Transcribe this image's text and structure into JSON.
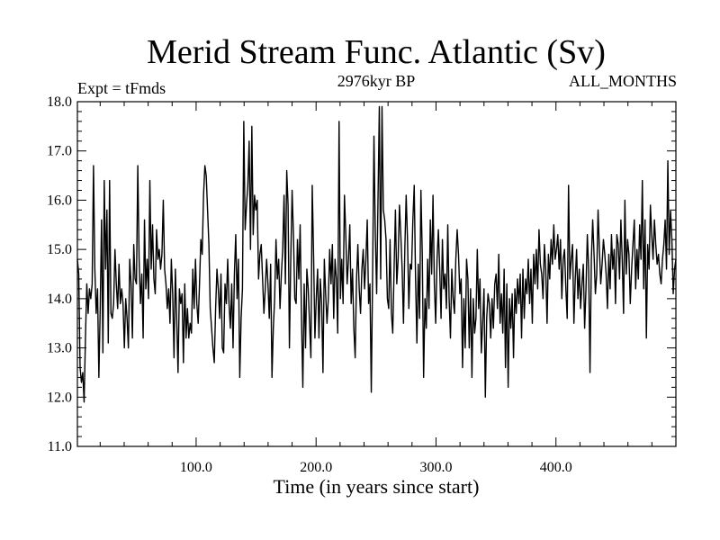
{
  "chart_data": {
    "type": "line",
    "title": "Merid Stream Func. Atlantic (Sv)",
    "subtitle": "2976kyr BP",
    "expt_label": "Expt = tFmds",
    "months_label": "ALL_MONTHS",
    "xlabel": "Time (in years since start)",
    "ylabel": "",
    "xlim": [
      1,
      500
    ],
    "ylim": [
      11.0,
      18.0
    ],
    "x_ticks": [
      "100.0",
      "200.0",
      "300.0",
      "400.0"
    ],
    "y_ticks": [
      "11.0",
      "12.0",
      "13.0",
      "14.0",
      "15.0",
      "16.0",
      "17.0",
      "18.0"
    ],
    "grid": false,
    "series": [
      {
        "values": [
          14.8,
          14.5,
          12.6,
          12.3,
          12.5,
          11.9,
          13.2,
          14.3,
          13.7,
          14.2,
          14.0,
          14.3,
          16.7,
          14.6,
          13.7,
          14.2,
          12.4,
          13.8,
          15.6,
          12.9,
          16.4,
          14.6,
          15.8,
          13.1,
          16.4,
          13.7,
          13.6,
          13.9,
          15.0,
          14.3,
          13.8,
          14.7,
          13.9,
          14.2,
          13.9,
          13.0,
          14.0,
          13.6,
          13.0,
          14.8,
          14.3,
          13.2,
          15.1,
          14.4,
          14.3,
          16.7,
          14.8,
          13.9,
          14.5,
          13.2,
          15.6,
          14.2,
          14.8,
          14.0,
          16.4,
          14.6,
          15.5,
          14.4,
          14.1,
          15.4,
          14.8,
          15.0,
          14.6,
          14.9,
          16.0,
          14.6,
          14.3,
          13.8,
          14.2,
          13.5,
          14.8,
          14.1,
          12.8,
          14.6,
          13.6,
          12.5,
          14.2,
          13.9,
          14.1,
          12.7,
          14.3,
          13.2,
          13.8,
          13.2,
          13.5,
          13.3,
          14.6,
          13.8,
          14.8,
          13.9,
          13.5,
          14.3,
          15.2,
          14.9,
          16.1,
          16.7,
          16.5,
          15.8,
          15.1,
          13.8,
          13.4,
          13.0,
          12.7,
          13.8,
          14.6,
          14.2,
          13.6,
          14.5,
          13.0,
          12.9,
          14.3,
          13.9,
          14.8,
          13.9,
          13.4,
          14.3,
          13.0,
          14.5,
          15.3,
          14.0,
          14.8,
          12.4,
          13.6,
          14.2,
          17.6,
          15.4,
          15.9,
          16.3,
          17.2,
          15.0,
          17.5,
          15.3,
          16.1,
          15.8,
          16.0,
          14.4,
          14.9,
          15.1,
          14.4,
          13.7,
          14.2,
          14.8,
          14.3,
          13.6,
          14.7,
          12.4,
          13.4,
          14.0,
          15.2,
          14.4,
          14.8,
          13.8,
          14.5,
          15.0,
          16.1,
          14.3,
          16.6,
          15.9,
          13.0,
          14.8,
          16.2,
          15.3,
          14.0,
          13.9,
          15.2,
          14.4,
          15.5,
          13.6,
          12.2,
          14.3,
          13.0,
          14.6,
          14.2,
          13.5,
          12.8,
          16.3,
          14.9,
          13.2,
          14.0,
          14.6,
          13.2,
          14.4,
          13.9,
          12.5,
          14.8,
          14.1,
          13.5,
          14.0,
          15.0,
          14.3,
          15.1,
          13.6,
          14.8,
          14.4,
          13.3,
          17.6,
          14.0,
          14.8,
          13.9,
          16.1,
          15.3,
          14.3,
          14.8,
          15.5,
          13.9,
          14.6,
          13.4,
          12.8,
          14.4,
          15.1,
          14.2,
          13.7,
          14.6,
          15.0,
          14.2,
          14.8,
          15.6,
          13.9,
          14.3,
          12.1,
          14.5,
          17.3,
          15.3,
          14.1,
          16.0,
          17.9,
          14.4,
          17.9,
          15.8,
          15.6,
          15.2,
          14.0,
          13.8,
          15.2,
          13.7,
          13.3,
          14.6,
          15.8,
          14.3,
          14.8,
          15.9,
          15.3,
          14.6,
          13.5,
          15.0,
          16.1,
          15.2,
          13.8,
          14.7,
          14.6,
          15.6,
          16.3,
          14.4,
          13.1,
          14.7,
          13.6,
          16.2,
          14.9,
          12.4,
          14.0,
          13.4,
          14.8,
          13.8,
          15.6,
          14.5,
          16.1,
          14.3,
          13.5,
          14.8,
          15.4,
          14.6,
          13.6,
          15.2,
          14.2,
          14.5,
          13.8,
          15.5,
          14.0,
          13.2,
          14.6,
          14.0,
          13.7,
          14.8,
          15.4,
          14.9,
          14.1,
          14.4,
          12.6,
          14.0,
          13.0,
          14.8,
          14.4,
          13.0,
          14.2,
          12.4,
          14.0,
          13.3,
          13.6,
          15.0,
          13.8,
          14.4,
          12.9,
          13.5,
          14.2,
          12.0,
          13.6,
          14.1,
          13.9,
          13.2,
          14.0,
          13.4,
          14.3,
          14.5,
          13.8,
          14.9,
          13.5,
          14.1,
          13.3,
          14.6,
          12.6,
          14.3,
          12.2,
          14.0,
          13.4,
          14.1,
          12.8,
          14.2,
          13.7,
          14.4,
          13.9,
          14.5,
          13.2,
          14.6,
          13.6,
          14.4,
          14.1,
          14.8,
          13.9,
          14.6,
          13.5,
          14.9,
          14.3,
          15.0,
          14.2,
          15.4,
          14.7,
          14.5,
          14.0,
          15.1,
          14.6,
          13.5,
          14.9,
          14.4,
          15.2,
          14.7,
          15.5,
          14.8,
          15.0,
          15.3,
          14.6,
          15.2,
          14.0,
          14.8,
          15.0,
          14.2,
          13.6,
          16.3,
          14.4,
          14.8,
          15.1,
          13.5,
          14.4,
          15.0,
          14.0,
          14.6,
          13.8,
          14.3,
          14.7,
          13.4,
          14.2,
          15.3,
          14.6,
          12.5,
          14.8,
          15.6,
          14.9,
          14.1,
          14.5,
          15.8,
          15.0,
          14.3,
          14.7,
          15.2,
          14.9,
          14.5,
          13.8,
          14.9,
          14.2,
          15.3,
          14.6,
          15.0,
          13.9,
          15.3,
          15.1,
          14.4,
          15.6,
          14.8,
          13.7,
          16.0,
          14.5,
          15.2,
          14.9,
          13.9,
          14.6,
          15.1,
          15.6,
          14.2,
          15.0,
          14.4,
          15.5,
          14.8,
          16.4,
          14.2,
          15.6,
          13.2,
          15.1,
          14.6,
          15.9,
          15.3,
          14.8,
          15.6,
          15.1,
          14.7,
          14.9,
          14.5,
          14.3,
          14.8,
          15.1,
          15.6,
          14.6,
          16.8,
          14.9,
          15.8,
          15.2,
          14.1,
          14.6,
          14.8
        ]
      }
    ]
  }
}
